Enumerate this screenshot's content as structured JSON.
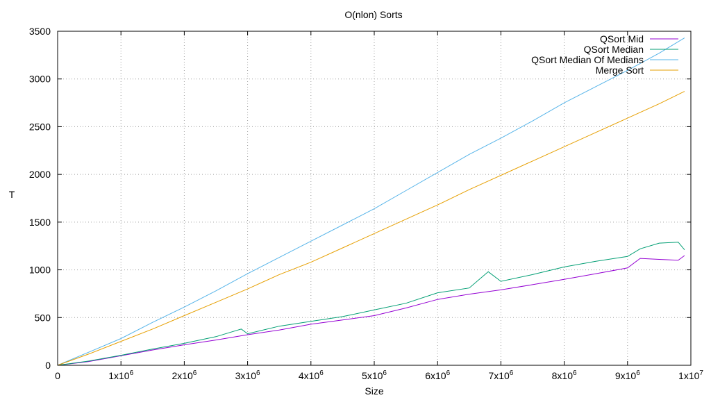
{
  "chart_data": {
    "type": "line",
    "title": "O(nlon) Sorts",
    "xlabel": "Size",
    "ylabel": "T",
    "xlim": [
      0,
      10000000
    ],
    "ylim": [
      0,
      3500
    ],
    "grid": true,
    "legend_position": "top-right",
    "x_ticks": [
      {
        "value": 0,
        "base": "0",
        "exp": ""
      },
      {
        "value": 1000000,
        "base": "1x10",
        "exp": "6"
      },
      {
        "value": 2000000,
        "base": "2x10",
        "exp": "6"
      },
      {
        "value": 3000000,
        "base": "3x10",
        "exp": "6"
      },
      {
        "value": 4000000,
        "base": "4x10",
        "exp": "6"
      },
      {
        "value": 5000000,
        "base": "5x10",
        "exp": "6"
      },
      {
        "value": 6000000,
        "base": "6x10",
        "exp": "6"
      },
      {
        "value": 7000000,
        "base": "7x10",
        "exp": "6"
      },
      {
        "value": 8000000,
        "base": "8x10",
        "exp": "6"
      },
      {
        "value": 9000000,
        "base": "9x10",
        "exp": "6"
      },
      {
        "value": 10000000,
        "base": "1x10",
        "exp": "7"
      }
    ],
    "y_ticks": [
      {
        "value": 0,
        "label": "0"
      },
      {
        "value": 500,
        "label": "500"
      },
      {
        "value": 1000,
        "label": "1000"
      },
      {
        "value": 1500,
        "label": "1500"
      },
      {
        "value": 2000,
        "label": "2000"
      },
      {
        "value": 2500,
        "label": "2500"
      },
      {
        "value": 3000,
        "label": "3000"
      },
      {
        "value": 3500,
        "label": "3500"
      }
    ],
    "series": [
      {
        "name": "QSort Mid",
        "color": "#9400d3",
        "points": [
          [
            0,
            0
          ],
          [
            500000,
            40
          ],
          [
            1000000,
            100
          ],
          [
            1500000,
            160
          ],
          [
            2000000,
            215
          ],
          [
            2500000,
            265
          ],
          [
            3000000,
            320
          ],
          [
            3500000,
            370
          ],
          [
            4000000,
            430
          ],
          [
            4500000,
            475
          ],
          [
            5000000,
            520
          ],
          [
            5500000,
            600
          ],
          [
            6000000,
            690
          ],
          [
            6500000,
            745
          ],
          [
            7000000,
            790
          ],
          [
            7500000,
            845
          ],
          [
            8000000,
            900
          ],
          [
            8500000,
            960
          ],
          [
            9000000,
            1020
          ],
          [
            9200000,
            1120
          ],
          [
            9500000,
            1110
          ],
          [
            9800000,
            1100
          ],
          [
            9900000,
            1150
          ]
        ]
      },
      {
        "name": "QSort Median",
        "color": "#009e73",
        "points": [
          [
            0,
            0
          ],
          [
            500000,
            45
          ],
          [
            1000000,
            105
          ],
          [
            1500000,
            170
          ],
          [
            2000000,
            230
          ],
          [
            2500000,
            300
          ],
          [
            2900000,
            380
          ],
          [
            3000000,
            330
          ],
          [
            3500000,
            410
          ],
          [
            4000000,
            460
          ],
          [
            4500000,
            510
          ],
          [
            5000000,
            580
          ],
          [
            5500000,
            650
          ],
          [
            6000000,
            760
          ],
          [
            6500000,
            810
          ],
          [
            6800000,
            980
          ],
          [
            7000000,
            880
          ],
          [
            7500000,
            950
          ],
          [
            8000000,
            1030
          ],
          [
            8500000,
            1090
          ],
          [
            9000000,
            1140
          ],
          [
            9200000,
            1220
          ],
          [
            9500000,
            1280
          ],
          [
            9800000,
            1290
          ],
          [
            9900000,
            1210
          ]
        ]
      },
      {
        "name": "QSort Median Of Medians",
        "color": "#56b4e9",
        "points": [
          [
            0,
            0
          ],
          [
            500000,
            140
          ],
          [
            1000000,
            280
          ],
          [
            1500000,
            450
          ],
          [
            2000000,
            610
          ],
          [
            2500000,
            780
          ],
          [
            3000000,
            960
          ],
          [
            3500000,
            1130
          ],
          [
            4000000,
            1300
          ],
          [
            4500000,
            1470
          ],
          [
            5000000,
            1640
          ],
          [
            5500000,
            1830
          ],
          [
            6000000,
            2020
          ],
          [
            6500000,
            2210
          ],
          [
            7000000,
            2380
          ],
          [
            7500000,
            2560
          ],
          [
            8000000,
            2750
          ],
          [
            8500000,
            2920
          ],
          [
            9000000,
            3090
          ],
          [
            9500000,
            3270
          ],
          [
            9900000,
            3430
          ]
        ]
      },
      {
        "name": "Merge Sort",
        "color": "#e69f00",
        "points": [
          [
            0,
            0
          ],
          [
            500000,
            120
          ],
          [
            1000000,
            250
          ],
          [
            1500000,
            380
          ],
          [
            2000000,
            520
          ],
          [
            2500000,
            660
          ],
          [
            3000000,
            800
          ],
          [
            3500000,
            950
          ],
          [
            4000000,
            1080
          ],
          [
            4500000,
            1230
          ],
          [
            5000000,
            1380
          ],
          [
            5500000,
            1530
          ],
          [
            6000000,
            1680
          ],
          [
            6500000,
            1840
          ],
          [
            7000000,
            1990
          ],
          [
            7500000,
            2140
          ],
          [
            8000000,
            2290
          ],
          [
            8500000,
            2440
          ],
          [
            9000000,
            2590
          ],
          [
            9500000,
            2740
          ],
          [
            9900000,
            2870
          ]
        ]
      }
    ]
  }
}
